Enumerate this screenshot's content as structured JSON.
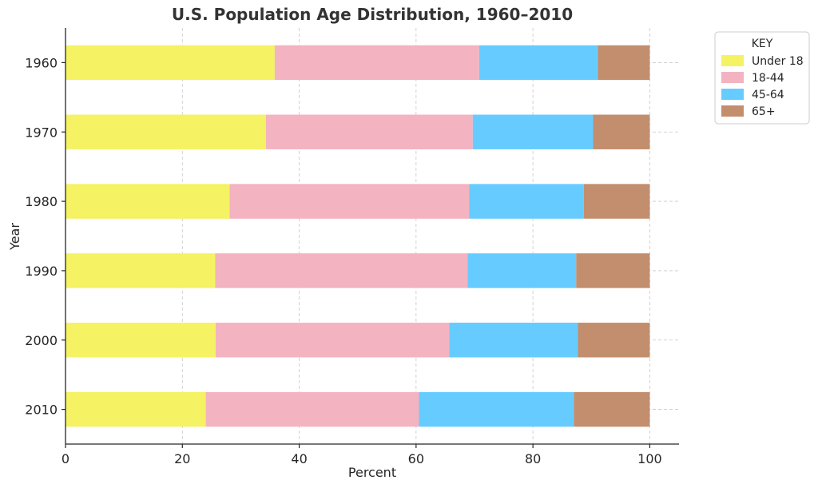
{
  "chart_data": {
    "type": "bar",
    "orientation": "horizontal",
    "stacked": true,
    "title": "U.S. Population Age Distribution, 1960–2010",
    "xlabel": "Percent",
    "ylabel": "Year",
    "xlim": [
      0,
      105
    ],
    "xticks": [
      "0",
      "20",
      "40",
      "60",
      "80",
      "100"
    ],
    "categories": [
      "1960",
      "1970",
      "1980",
      "1990",
      "2000",
      "2010"
    ],
    "grid": true,
    "legend": {
      "title": "KEY",
      "placement": "outside-top-right"
    },
    "series": [
      {
        "name": "Under 18",
        "color": "#f5f263",
        "values": [
          35.8,
          34.3,
          28.1,
          25.6,
          25.7,
          24.0
        ]
      },
      {
        "name": "18-44",
        "color": "#f4b3c0",
        "values": [
          35.0,
          35.4,
          41.0,
          43.2,
          40.0,
          36.5
        ]
      },
      {
        "name": "45-64",
        "color": "#66ccff",
        "values": [
          20.3,
          20.6,
          19.6,
          18.6,
          22.0,
          26.5
        ]
      },
      {
        "name": "65+",
        "color": "#c28e6e",
        "values": [
          8.9,
          9.7,
          11.3,
          12.6,
          12.3,
          13.0
        ]
      }
    ]
  }
}
